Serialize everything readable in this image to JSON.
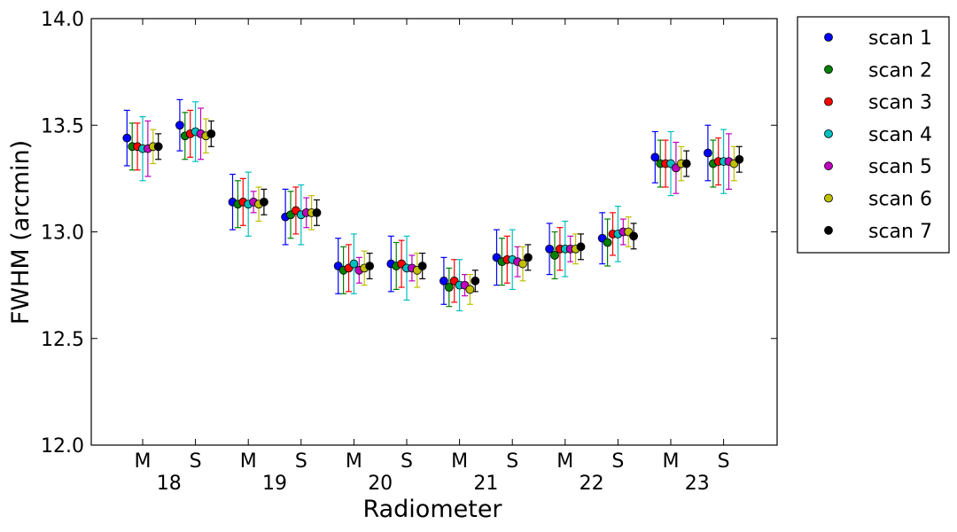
{
  "chart_data": {
    "type": "scatter",
    "xlabel": "Radiometer",
    "ylabel": "FWHM (arcmin)",
    "ylim": [
      12.0,
      14.0
    ],
    "yticks": [
      "12.0",
      "12.5",
      "13.0",
      "13.5",
      "14.0"
    ],
    "grid": false,
    "legend_placement": "outside-top-right",
    "categories": [
      "M",
      "S",
      "M",
      "S",
      "M",
      "S",
      "M",
      "S",
      "M",
      "S",
      "M",
      "S"
    ],
    "groups": [
      "18",
      "19",
      "20",
      "21",
      "22",
      "23"
    ],
    "series": [
      {
        "name": "scan 1",
        "color": "#0000ff",
        "values": [
          13.44,
          13.5,
          13.14,
          13.07,
          12.84,
          12.85,
          12.77,
          12.88,
          12.92,
          12.97,
          13.35,
          13.37
        ],
        "errors": [
          0.13,
          0.12,
          0.13,
          0.13,
          0.13,
          0.13,
          0.11,
          0.13,
          0.12,
          0.12,
          0.12,
          0.13
        ]
      },
      {
        "name": "scan 2",
        "color": "#008000",
        "values": [
          13.4,
          13.45,
          13.13,
          13.08,
          12.82,
          12.84,
          12.74,
          12.86,
          12.89,
          12.95,
          13.32,
          13.32
        ],
        "errors": [
          0.11,
          0.11,
          0.11,
          0.11,
          0.11,
          0.11,
          0.09,
          0.11,
          0.11,
          0.11,
          0.11,
          0.11
        ]
      },
      {
        "name": "scan 3",
        "color": "#ff0000",
        "values": [
          13.4,
          13.46,
          13.14,
          13.1,
          12.83,
          12.85,
          12.77,
          12.87,
          12.92,
          12.99,
          13.32,
          13.33
        ],
        "errors": [
          0.11,
          0.11,
          0.11,
          0.11,
          0.11,
          0.11,
          0.1,
          0.11,
          0.1,
          0.1,
          0.11,
          0.11
        ]
      },
      {
        "name": "scan 4",
        "color": "#00bfbf",
        "values": [
          13.39,
          13.47,
          13.13,
          13.08,
          12.85,
          12.83,
          12.75,
          12.87,
          12.92,
          12.99,
          13.32,
          13.33
        ],
        "errors": [
          0.15,
          0.14,
          0.15,
          0.14,
          0.14,
          0.15,
          0.12,
          0.14,
          0.13,
          0.13,
          0.15,
          0.15
        ]
      },
      {
        "name": "scan 5",
        "color": "#bf00bf",
        "values": [
          13.39,
          13.46,
          13.14,
          13.09,
          12.82,
          12.83,
          12.75,
          12.86,
          12.92,
          13.0,
          13.3,
          13.33
        ],
        "errors": [
          0.13,
          0.12,
          0.05,
          0.07,
          0.06,
          0.06,
          0.05,
          0.07,
          0.06,
          0.06,
          0.12,
          0.13
        ]
      },
      {
        "name": "scan 6",
        "color": "#bfbf00",
        "values": [
          13.4,
          13.45,
          13.13,
          13.09,
          12.83,
          12.82,
          12.73,
          12.85,
          12.92,
          13.0,
          13.32,
          13.32
        ],
        "errors": [
          0.08,
          0.08,
          0.08,
          0.08,
          0.08,
          0.08,
          0.07,
          0.08,
          0.07,
          0.07,
          0.08,
          0.08
        ]
      },
      {
        "name": "scan 7",
        "color": "#000000",
        "values": [
          13.4,
          13.46,
          13.14,
          13.09,
          12.84,
          12.84,
          12.77,
          12.88,
          12.93,
          12.98,
          13.32,
          13.34
        ],
        "errors": [
          0.06,
          0.06,
          0.06,
          0.06,
          0.06,
          0.06,
          0.05,
          0.06,
          0.06,
          0.06,
          0.06,
          0.06
        ]
      }
    ]
  }
}
